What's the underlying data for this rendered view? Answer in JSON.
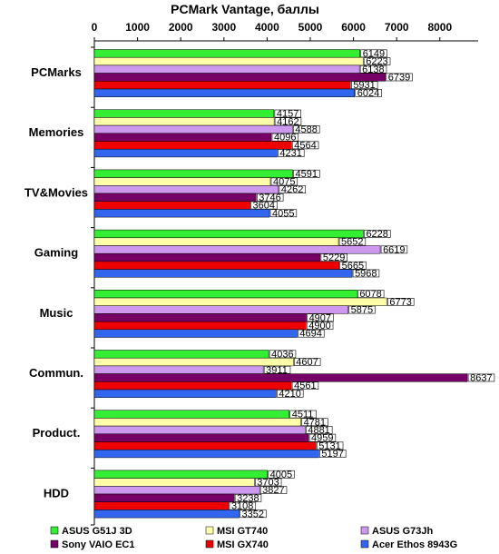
{
  "chart_data": {
    "type": "bar",
    "orientation": "horizontal",
    "title": "PCMark Vantage, баллы",
    "xlim": [
      0,
      8800
    ],
    "ticks": [
      0,
      1000,
      2000,
      3000,
      4000,
      5000,
      6000,
      7000,
      8000
    ],
    "tick_labels": [
      "0",
      "1000",
      "2000",
      "3000",
      "4000",
      "5000",
      "6000",
      "7000",
      "8000"
    ],
    "axis_position": "top",
    "grid": false,
    "legend_position": "bottom",
    "categories": [
      "PCMarks",
      "Memories",
      "TV&Movies",
      "Gaming",
      "Music",
      "Commun.",
      "Product.",
      "HDD"
    ],
    "series": [
      {
        "name": "ASUS G51J 3D",
        "color": "#33ee33",
        "values": [
          6149,
          4157,
          4591,
          6228,
          6078,
          4036,
          4511,
          4005
        ]
      },
      {
        "name": "MSI GT740",
        "color": "#ffffaa",
        "values": [
          6223,
          4162,
          4075,
          5652,
          6773,
          4607,
          4781,
          3703
        ]
      },
      {
        "name": "ASUS G73Jh",
        "color": "#cc99ee",
        "values": [
          6138,
          4588,
          4262,
          6619,
          5875,
          3911,
          4881,
          3827
        ]
      },
      {
        "name": "Sony VAIO EC1",
        "color": "#770066",
        "values": [
          6739,
          4096,
          3746,
          5229,
          4907,
          8637,
          4959,
          3238
        ]
      },
      {
        "name": "MSI GX740",
        "color": "#ee0000",
        "values": [
          5931,
          4564,
          3604,
          5665,
          4900,
          4561,
          5131,
          3108
        ]
      },
      {
        "name": "Acer Ethos 8943G",
        "color": "#3366ee",
        "values": [
          6024,
          4231,
          4055,
          5968,
          4694,
          4210,
          5197,
          3352
        ]
      }
    ]
  }
}
